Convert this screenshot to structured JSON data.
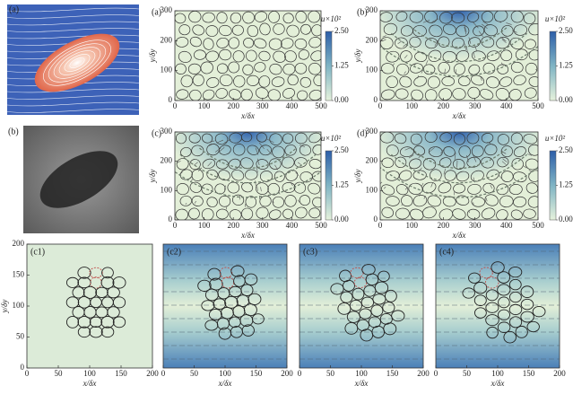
{
  "images": [
    {
      "label": "(a)"
    },
    {
      "label": "(b)"
    }
  ],
  "chart_data": [
    {
      "type": "field",
      "label": "(a)",
      "xlabel": "x/δx",
      "ylabel": "y/δy",
      "xlim": [
        0,
        500
      ],
      "ylim": [
        0,
        300
      ],
      "xticks": [
        0,
        100,
        200,
        300,
        400,
        500
      ],
      "yticks": [
        0,
        100,
        200,
        300
      ],
      "colorbar": {
        "label": "u×10²",
        "lim": [
          0,
          2.5
        ],
        "ticks": [
          {
            "value": 0,
            "label": "0.00"
          },
          {
            "value": 1.25,
            "label": "1.25"
          },
          {
            "value": 2.5,
            "label": "2.50"
          }
        ]
      }
    },
    {
      "type": "field",
      "label": "(b)",
      "xlabel": "x/δx",
      "ylabel": "y/δy",
      "xlim": [
        0,
        500
      ],
      "ylim": [
        0,
        300
      ],
      "xticks": [
        0,
        100,
        200,
        300,
        400,
        500
      ],
      "yticks": [
        0,
        100,
        200,
        300
      ],
      "colorbar": {
        "label": "u×10²",
        "lim": [
          0,
          2.5
        ],
        "ticks": [
          {
            "value": 0,
            "label": "0.00"
          },
          {
            "value": 1.25,
            "label": "1.25"
          },
          {
            "value": 2.5,
            "label": "2.50"
          }
        ]
      }
    },
    {
      "type": "field",
      "label": "(c)",
      "xlabel": "x/δx",
      "ylabel": "y/δy",
      "xlim": [
        0,
        500
      ],
      "ylim": [
        0,
        300
      ],
      "xticks": [
        0,
        100,
        200,
        300,
        400,
        500
      ],
      "yticks": [
        0,
        100,
        200,
        300
      ],
      "colorbar": {
        "label": "u×10²",
        "lim": [
          0,
          2.5
        ],
        "ticks": [
          {
            "value": 0,
            "label": "0.00"
          },
          {
            "value": 1.25,
            "label": "1.25"
          },
          {
            "value": 2.5,
            "label": "2.50"
          }
        ]
      }
    },
    {
      "type": "field",
      "label": "(d)",
      "xlabel": "x/δx",
      "ylabel": "y/δy",
      "xlim": [
        0,
        500
      ],
      "ylim": [
        0,
        300
      ],
      "xticks": [
        0,
        100,
        200,
        300,
        400,
        500
      ],
      "yticks": [
        0,
        100,
        200,
        300
      ],
      "colorbar": {
        "label": "u×10²",
        "lim": [
          0,
          2.5
        ],
        "ticks": [
          {
            "value": 0,
            "label": "0.00"
          },
          {
            "value": 1.25,
            "label": "1.25"
          },
          {
            "value": 2.5,
            "label": "2.50"
          }
        ]
      }
    },
    {
      "type": "cluster",
      "label": "(c1)",
      "xlabel": "x/δx",
      "ylabel": "y/δy",
      "xlim": [
        0,
        200
      ],
      "ylim": [
        0,
        200
      ],
      "xticks": [
        0,
        50,
        100,
        150,
        200
      ],
      "yticks": [
        0,
        50,
        100,
        150,
        200
      ]
    },
    {
      "type": "cluster",
      "label": "(c2)",
      "xlabel": "x/δx",
      "xlim": [
        0,
        200
      ],
      "ylim": [
        0,
        200
      ],
      "xticks": [
        0,
        50,
        100,
        150,
        200
      ]
    },
    {
      "type": "cluster",
      "label": "(c3)",
      "xlabel": "x/δx",
      "xlim": [
        0,
        200
      ],
      "ylim": [
        0,
        200
      ],
      "xticks": [
        0,
        50,
        100,
        150,
        200
      ]
    },
    {
      "type": "cluster",
      "label": "(c4)",
      "xlabel": "x/δx",
      "xlim": [
        0,
        200
      ],
      "ylim": [
        0,
        200
      ],
      "xticks": [
        0,
        50,
        100,
        150,
        200
      ]
    }
  ]
}
